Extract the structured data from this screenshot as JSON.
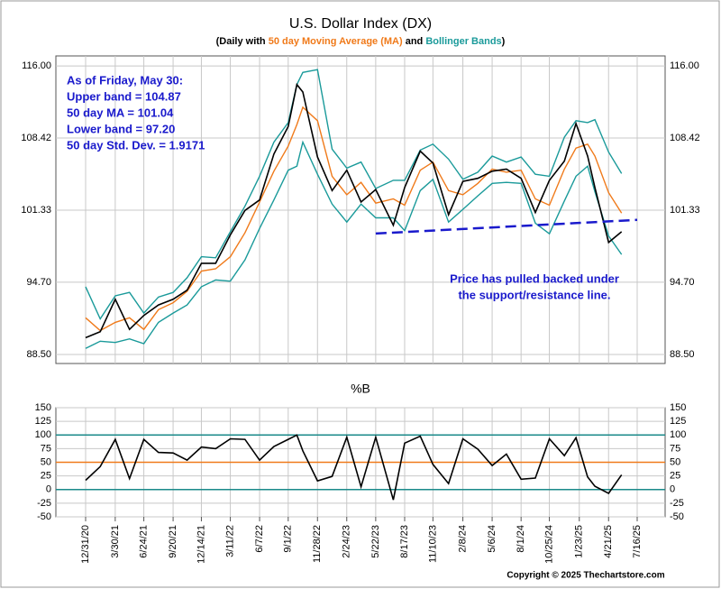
{
  "chart_data": [
    {
      "type": "line",
      "title": "U.S. Dollar Index (DX)",
      "subtitle_parts": [
        {
          "text": "(Daily with ",
          "color": "#000000"
        },
        {
          "text": "50 day Moving Average (MA)",
          "color": "#f07a1a"
        },
        {
          "text": " and ",
          "color": "#000000"
        },
        {
          "text": "Bollinger Bands",
          "color": "#1a9a9a"
        },
        {
          "text": ")",
          "color": "#000000"
        }
      ],
      "log_scale": true,
      "grid": true,
      "ylim": [
        87.75,
        117.1
      ],
      "yticks": [
        {
          "value": 88.5,
          "label": "88.50"
        },
        {
          "value": 94.7,
          "label": "94.70"
        },
        101.33,
        108.42,
        {
          "value": 116,
          "label": "116.00"
        }
      ],
      "x": [
        "12/31/20",
        "2/13/21",
        "3/30/21",
        "5/12/21",
        "6/24/21",
        "8/7/21",
        "9/20/21",
        "11/1/21",
        "12/14/21",
        "1/26/22",
        "3/11/22",
        "4/24/22",
        "6/7/22",
        "7/20/22",
        "9/1/22",
        "9/27/22",
        "10/15/22",
        "11/28/22",
        "1/11/23",
        "2/24/23",
        "4/8/23",
        "5/22/23",
        "7/14/23",
        "8/17/23",
        "10/3/23",
        "11/10/23",
        "12/27/23",
        "2/8/24",
        "3/24/24",
        "5/6/24",
        "6/18/24",
        "8/1/24",
        "9/13/24",
        "10/25/24",
        "12/9/24",
        "1/13/25",
        "2/17/25",
        "3/11/25",
        "4/21/25",
        "5/30/25"
      ],
      "series": [
        {
          "color": "#1a9a9a",
          "values": [
            94.3,
            91.5,
            93.5,
            93.8,
            92.0,
            93.4,
            93.8,
            95.1,
            97.0,
            96.9,
            99.3,
            101.7,
            104.6,
            108.0,
            110.0,
            114.0,
            115.3,
            115.6,
            107.3,
            105.4,
            106.0,
            103.4,
            104.2,
            104.2,
            107.2,
            107.8,
            106.3,
            104.3,
            105.0,
            106.6,
            106.0,
            106.5,
            104.8,
            104.6,
            108.5,
            110.2,
            110.0,
            110.3,
            107.0,
            104.87
          ]
        },
        {
          "color": "#1a9a9a",
          "values": [
            89.0,
            89.6,
            89.5,
            89.8,
            89.4,
            91.2,
            92.0,
            92.7,
            94.3,
            94.9,
            94.8,
            96.7,
            99.6,
            102.3,
            105.2,
            105.6,
            108.0,
            104.8,
            101.9,
            100.2,
            101.9,
            100.6,
            100.6,
            99.4,
            103.2,
            104.3,
            100.2,
            101.4,
            102.7,
            103.9,
            104.0,
            103.9,
            100.1,
            99.1,
            102.2,
            104.6,
            105.6,
            103.1,
            98.9,
            97.2
          ]
        },
        {
          "color": "#f07a1a",
          "values": [
            91.6,
            90.5,
            91.2,
            91.6,
            90.6,
            92.3,
            92.9,
            93.9,
            95.7,
            95.9,
            97.0,
            99.2,
            102.1,
            105.1,
            107.6,
            109.8,
            111.6,
            110.2,
            104.6,
            102.8,
            104.0,
            102.0,
            102.4,
            101.8,
            105.2,
            106.0,
            103.2,
            102.8,
            103.9,
            105.3,
            105.0,
            105.2,
            102.4,
            101.8,
            105.3,
            107.4,
            107.8,
            106.6,
            103.0,
            101.04
          ]
        },
        {
          "color": "#000000",
          "values": [
            89.9,
            90.4,
            93.2,
            90.6,
            91.8,
            92.7,
            93.2,
            94.0,
            96.4,
            96.4,
            99.0,
            101.3,
            102.3,
            106.8,
            109.6,
            114.0,
            113.2,
            106.5,
            103.2,
            105.2,
            102.1,
            103.3,
            99.9,
            103.5,
            107.1,
            105.9,
            100.9,
            104.1,
            104.4,
            105.1,
            105.3,
            104.4,
            101.1,
            104.2,
            106.1,
            109.9,
            106.6,
            103.5,
            98.3,
            99.3
          ]
        }
      ],
      "support_line": {
        "x": [
          "5/22/23",
          "7/16/25"
        ],
        "values": [
          99.13,
          100.4
        ],
        "color": "#1a1acc"
      },
      "annotations": [
        {
          "lines": [
            "As of Friday, May 30:",
            "Upper band = 104.87",
            "50 day MA = 101.04",
            "Lower band = 97.20",
            "50 day Std. Dev. = 1.9171"
          ],
          "color": "#1a1acc"
        },
        {
          "lines": [
            "Price has pulled backed under",
            "the support/resistance line."
          ],
          "color": "#1a1acc"
        }
      ]
    },
    {
      "type": "line",
      "title": "%B",
      "grid": true,
      "ylim": [
        -50,
        150
      ],
      "yticks": [
        -50,
        -25,
        0,
        25,
        50,
        75,
        100,
        125,
        150
      ],
      "xticks": [
        "12/31/20",
        "3/30/21",
        "6/24/21",
        "9/20/21",
        "12/14/21",
        "3/11/22",
        "6/7/22",
        "9/1/22",
        "11/28/22",
        "2/24/23",
        "5/22/23",
        "8/17/23",
        "11/10/23",
        "2/8/24",
        "5/6/24",
        "8/1/24",
        "10/25/24",
        "1/23/25",
        "4/21/25",
        "7/16/25"
      ],
      "reference_lines": [
        {
          "value": 0,
          "color": "#1a8a8a"
        },
        {
          "value": 50,
          "color": "#f07a1a"
        },
        {
          "value": 100,
          "color": "#1a8a8a"
        }
      ],
      "x": [
        "12/31/20",
        "2/13/21",
        "3/30/21",
        "5/12/21",
        "6/24/21",
        "8/7/21",
        "9/20/21",
        "11/1/21",
        "12/14/21",
        "1/26/22",
        "3/11/22",
        "4/24/22",
        "6/7/22",
        "7/20/22",
        "9/1/22",
        "9/27/22",
        "10/15/22",
        "11/28/22",
        "1/11/23",
        "2/24/23",
        "4/8/23",
        "5/22/23",
        "7/14/23",
        "8/17/23",
        "10/3/23",
        "11/10/23",
        "12/27/23",
        "2/8/24",
        "3/24/24",
        "5/6/24",
        "6/18/24",
        "8/1/24",
        "9/13/24",
        "10/25/24",
        "12/9/24",
        "1/13/25",
        "2/17/25",
        "3/11/25",
        "4/21/25",
        "5/30/25"
      ],
      "series": [
        {
          "color": "#000000",
          "values": [
            17,
            42,
            92,
            20,
            92,
            68,
            67,
            54,
            78,
            75,
            93,
            92,
            54,
            79,
            92,
            100,
            71,
            16,
            24,
            96,
            5,
            96,
            -19,
            85,
            98,
            46,
            11,
            93,
            74,
            44,
            65,
            19,
            21,
            93,
            62,
            95,
            23,
            6,
            -7,
            27
          ]
        }
      ]
    },
    {
      "type": "text",
      "copyright": "Copyright © 2025 Thechartstore.com"
    }
  ]
}
